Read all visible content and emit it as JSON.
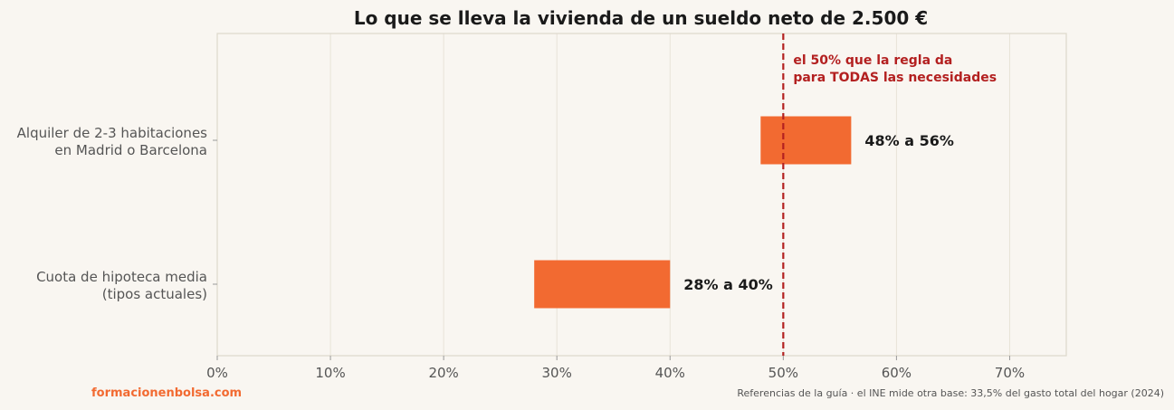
{
  "chart_data": {
    "type": "bar",
    "orientation": "horizontal",
    "subtype": "range",
    "title": "Lo que se lleva la vivienda de un sueldo neto de 2.500 €",
    "categories": [
      {
        "lines": [
          "Alquiler de 2-3 habitaciones",
          "en Madrid o Barcelona"
        ]
      },
      {
        "lines": [
          "Cuota de hipoteca media",
          "(tipos actuales)"
        ]
      }
    ],
    "ranges": [
      [
        48,
        56
      ],
      [
        28,
        40
      ]
    ],
    "data_labels": [
      "48% a 56%",
      "28% a 40%"
    ],
    "xlim": [
      0,
      75
    ],
    "xticks": [
      0,
      10,
      20,
      30,
      40,
      50,
      60,
      70
    ],
    "xtick_labels": [
      "0%",
      "10%",
      "20%",
      "30%",
      "40%",
      "50%",
      "60%",
      "70%"
    ],
    "grid": "vertical",
    "reference_line": {
      "value": 50,
      "label_lines": [
        "el 50% que la regla da",
        "para TODAS las necesidades"
      ]
    },
    "colors": {
      "bar": "#f26a31",
      "reference": "#b32020",
      "grid": "#e8e3d8",
      "background": "#f9f6f1"
    }
  },
  "footer": {
    "brand": "formacionenbolsa.com",
    "note": "Referencias de la guía · el INE mide otra base: 33,5% del gasto total del hogar (2024)"
  }
}
